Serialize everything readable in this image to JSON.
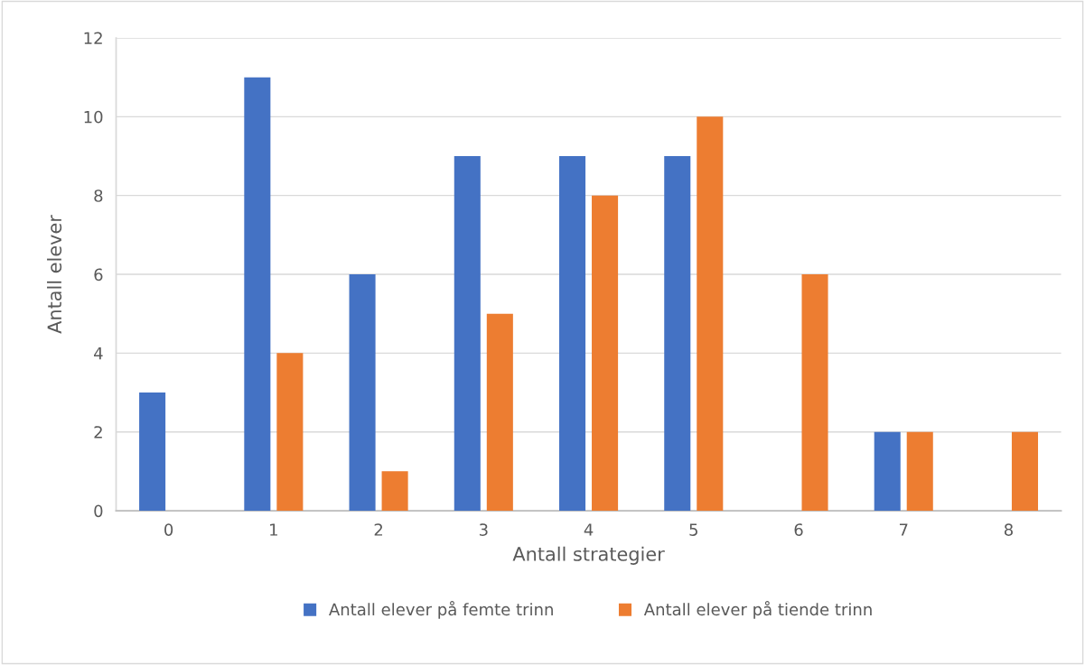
{
  "chart_data": {
    "type": "bar",
    "xlabel": "Antall strategier",
    "ylabel": "Antall elever",
    "categories": [
      "0",
      "1",
      "2",
      "3",
      "4",
      "5",
      "6",
      "7",
      "8"
    ],
    "series": [
      {
        "name": "Antall elever på femte trinn",
        "color": "#4472c4",
        "values": [
          3,
          11,
          6,
          9,
          9,
          9,
          0,
          2,
          0
        ]
      },
      {
        "name": "Antall elever på tiende trinn",
        "color": "#ed7d31",
        "values": [
          0,
          4,
          1,
          5,
          8,
          10,
          6,
          2,
          2
        ]
      }
    ],
    "ylim": [
      0,
      12
    ],
    "yticks": [
      0,
      2,
      4,
      6,
      8,
      10,
      12
    ],
    "grid": "y",
    "legend": "bottom"
  }
}
